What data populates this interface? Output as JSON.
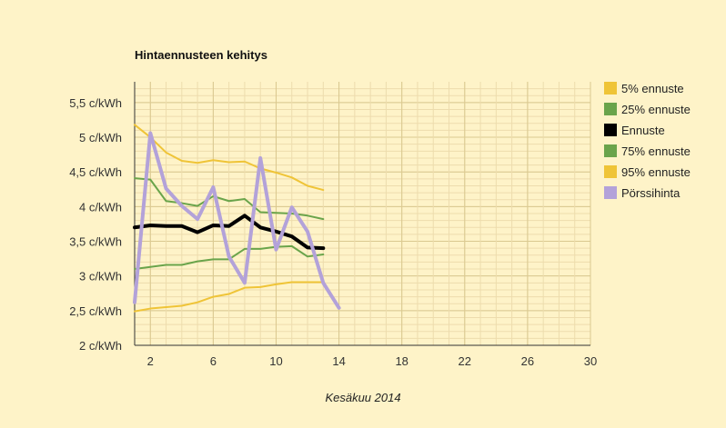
{
  "chart_data": {
    "type": "line",
    "title": "Hintaennusteen kehitys",
    "xlabel": "Kesäkuu 2014",
    "ylabel": "",
    "xlim": [
      1,
      30
    ],
    "ylim": [
      2,
      5.8
    ],
    "x_ticks": [
      2,
      6,
      10,
      14,
      18,
      22,
      26,
      30
    ],
    "y_ticks": [
      {
        "value": 2,
        "label": "2 c/kWh"
      },
      {
        "value": 2.5,
        "label": "2,5 c/kWh"
      },
      {
        "value": 3,
        "label": "3 c/kWh"
      },
      {
        "value": 3.5,
        "label": "3,5 c/kWh"
      },
      {
        "value": 4,
        "label": "4 c/kWh"
      },
      {
        "value": 4.5,
        "label": "4,5 c/kWh"
      },
      {
        "value": 5,
        "label": "5 c/kWh"
      },
      {
        "value": 5.5,
        "label": "5,5 c/kWh"
      }
    ],
    "grid": true,
    "legend_position": "right",
    "series": [
      {
        "name": "5% ennuste",
        "color": "#efc437",
        "width": 2,
        "x": [
          1,
          2,
          3,
          4,
          5,
          6,
          7,
          8,
          9,
          10,
          11,
          12,
          13
        ],
        "y": [
          2.49,
          2.53,
          2.55,
          2.57,
          2.62,
          2.7,
          2.74,
          2.83,
          2.84,
          2.88,
          2.91,
          2.91,
          2.91
        ]
      },
      {
        "name": "25% ennuste",
        "color": "#6aa44b",
        "width": 2,
        "x": [
          1,
          2,
          3,
          4,
          5,
          6,
          7,
          8,
          9,
          10,
          11,
          12,
          13
        ],
        "y": [
          3.1,
          3.13,
          3.16,
          3.16,
          3.21,
          3.24,
          3.24,
          3.39,
          3.39,
          3.42,
          3.43,
          3.28,
          3.31
        ]
      },
      {
        "name": "Ennuste",
        "color": "#000000",
        "width": 4,
        "x": [
          1,
          2,
          3,
          4,
          5,
          6,
          7,
          8,
          9,
          10,
          11,
          12,
          13
        ],
        "y": [
          3.7,
          3.73,
          3.72,
          3.72,
          3.63,
          3.73,
          3.72,
          3.87,
          3.7,
          3.64,
          3.57,
          3.41,
          3.4
        ]
      },
      {
        "name": "75% ennuste",
        "color": "#6aa44b",
        "width": 2,
        "x": [
          1,
          2,
          3,
          4,
          5,
          6,
          7,
          8,
          9,
          10,
          11,
          12,
          13
        ],
        "y": [
          4.41,
          4.39,
          4.08,
          4.05,
          4.01,
          4.15,
          4.08,
          4.11,
          3.92,
          3.91,
          3.9,
          3.87,
          3.82
        ]
      },
      {
        "name": "95% ennuste",
        "color": "#efc437",
        "width": 2,
        "x": [
          1,
          2,
          3,
          4,
          5,
          6,
          7,
          8,
          9,
          10,
          11,
          12,
          13
        ],
        "y": [
          5.18,
          5.0,
          4.78,
          4.66,
          4.63,
          4.67,
          4.64,
          4.65,
          4.55,
          4.49,
          4.42,
          4.3,
          4.24
        ]
      },
      {
        "name": "Pörssihinta",
        "color": "#b3a2d9",
        "width": 4,
        "x": [
          1,
          2,
          3,
          4,
          5,
          6,
          7,
          8,
          9,
          10,
          11,
          12,
          13,
          14
        ],
        "y": [
          2.62,
          5.06,
          4.26,
          4.01,
          3.82,
          4.28,
          3.28,
          2.9,
          4.7,
          3.38,
          3.99,
          3.64,
          2.9,
          2.54
        ]
      }
    ]
  }
}
